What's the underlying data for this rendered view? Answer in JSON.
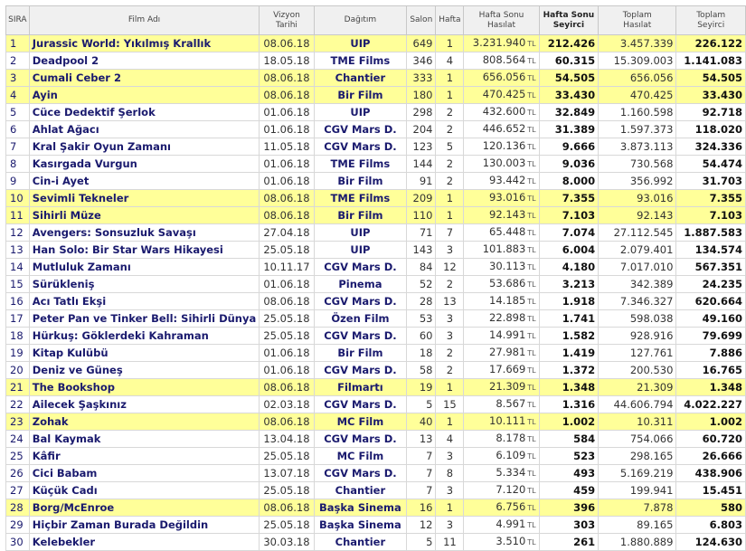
{
  "headers": {
    "rank": "SIRA",
    "title": "Film Adı",
    "release_1": "Vizyon",
    "release_2": "Tarihi",
    "distributor": "Dağıtım",
    "screens": "Salon",
    "week": "Hafta",
    "weekend_gross_1": "Hafta Sonu",
    "weekend_gross_2": "Hasılat",
    "weekend_adm_1": "Hafta Sonu",
    "weekend_adm_2": "Seyirci",
    "total_gross_1": "Toplam",
    "total_gross_2": "Hasılat",
    "total_adm_1": "Toplam",
    "total_adm_2": "Seyirci",
    "currency": "TL"
  },
  "rows": [
    {
      "rank": "1",
      "title": "Jurassic World: Yıkılmış Krallık",
      "date": "08.06.18",
      "dist": "UIP",
      "screens": "649",
      "week": "1",
      "wgross": "3.231.940",
      "wadm": "212.426",
      "tgross": "3.457.339",
      "tadm": "226.122",
      "hl": true
    },
    {
      "rank": "2",
      "title": "Deadpool 2",
      "date": "18.05.18",
      "dist": "TME Films",
      "screens": "346",
      "week": "4",
      "wgross": "808.564",
      "wadm": "60.315",
      "tgross": "15.309.003",
      "tadm": "1.141.083",
      "hl": false
    },
    {
      "rank": "3",
      "title": "Cumali Ceber 2",
      "date": "08.06.18",
      "dist": "Chantier",
      "screens": "333",
      "week": "1",
      "wgross": "656.056",
      "wadm": "54.505",
      "tgross": "656.056",
      "tadm": "54.505",
      "hl": true
    },
    {
      "rank": "4",
      "title": "Ayin",
      "date": "08.06.18",
      "dist": "Bir Film",
      "screens": "180",
      "week": "1",
      "wgross": "470.425",
      "wadm": "33.430",
      "tgross": "470.425",
      "tadm": "33.430",
      "hl": true
    },
    {
      "rank": "5",
      "title": "Cüce Dedektif Şerlok",
      "date": "01.06.18",
      "dist": "UIP",
      "screens": "298",
      "week": "2",
      "wgross": "432.600",
      "wadm": "32.849",
      "tgross": "1.160.598",
      "tadm": "92.718",
      "hl": false
    },
    {
      "rank": "6",
      "title": "Ahlat Ağacı",
      "date": "01.06.18",
      "dist": "CGV Mars D.",
      "screens": "204",
      "week": "2",
      "wgross": "446.652",
      "wadm": "31.389",
      "tgross": "1.597.373",
      "tadm": "118.020",
      "hl": false
    },
    {
      "rank": "7",
      "title": "Kral Şakir Oyun Zamanı",
      "date": "11.05.18",
      "dist": "CGV Mars D.",
      "screens": "123",
      "week": "5",
      "wgross": "120.136",
      "wadm": "9.666",
      "tgross": "3.873.113",
      "tadm": "324.336",
      "hl": false
    },
    {
      "rank": "8",
      "title": "Kasırgada Vurgun",
      "date": "01.06.18",
      "dist": "TME Films",
      "screens": "144",
      "week": "2",
      "wgross": "130.003",
      "wadm": "9.036",
      "tgross": "730.568",
      "tadm": "54.474",
      "hl": false
    },
    {
      "rank": "9",
      "title": "Cin-i Ayet",
      "date": "01.06.18",
      "dist": "Bir Film",
      "screens": "91",
      "week": "2",
      "wgross": "93.442",
      "wadm": "8.000",
      "tgross": "356.992",
      "tadm": "31.703",
      "hl": false
    },
    {
      "rank": "10",
      "title": "Sevimli Tekneler",
      "date": "08.06.18",
      "dist": "TME Films",
      "screens": "209",
      "week": "1",
      "wgross": "93.016",
      "wadm": "7.355",
      "tgross": "93.016",
      "tadm": "7.355",
      "hl": true
    },
    {
      "rank": "11",
      "title": "Sihirli Müze",
      "date": "08.06.18",
      "dist": "Bir Film",
      "screens": "110",
      "week": "1",
      "wgross": "92.143",
      "wadm": "7.103",
      "tgross": "92.143",
      "tadm": "7.103",
      "hl": true
    },
    {
      "rank": "12",
      "title": "Avengers: Sonsuzluk Savaşı",
      "date": "27.04.18",
      "dist": "UIP",
      "screens": "71",
      "week": "7",
      "wgross": "65.448",
      "wadm": "7.074",
      "tgross": "27.112.545",
      "tadm": "1.887.583",
      "hl": false
    },
    {
      "rank": "13",
      "title": "Han Solo: Bir Star Wars Hikayesi",
      "date": "25.05.18",
      "dist": "UIP",
      "screens": "143",
      "week": "3",
      "wgross": "101.883",
      "wadm": "6.004",
      "tgross": "2.079.401",
      "tadm": "134.574",
      "hl": false
    },
    {
      "rank": "14",
      "title": "Mutluluk Zamanı",
      "date": "10.11.17",
      "dist": "CGV Mars D.",
      "screens": "84",
      "week": "12",
      "wgross": "30.113",
      "wadm": "4.180",
      "tgross": "7.017.010",
      "tadm": "567.351",
      "hl": false
    },
    {
      "rank": "15",
      "title": "Sürükleniş",
      "date": "01.06.18",
      "dist": "Pinema",
      "screens": "52",
      "week": "2",
      "wgross": "53.686",
      "wadm": "3.213",
      "tgross": "342.389",
      "tadm": "24.235",
      "hl": false
    },
    {
      "rank": "16",
      "title": "Acı Tatlı Ekşi",
      "date": "08.06.18",
      "dist": "CGV Mars D.",
      "screens": "28",
      "week": "13",
      "wgross": "14.185",
      "wadm": "1.918",
      "tgross": "7.346.327",
      "tadm": "620.664",
      "hl": false
    },
    {
      "rank": "17",
      "title": "Peter Pan ve Tinker Bell: Sihirli Dünya",
      "date": "25.05.18",
      "dist": "Özen Film",
      "screens": "53",
      "week": "3",
      "wgross": "22.898",
      "wadm": "1.741",
      "tgross": "598.038",
      "tadm": "49.160",
      "hl": false
    },
    {
      "rank": "18",
      "title": "Hürkuş: Göklerdeki Kahraman",
      "date": "25.05.18",
      "dist": "CGV Mars D.",
      "screens": "60",
      "week": "3",
      "wgross": "14.991",
      "wadm": "1.582",
      "tgross": "928.916",
      "tadm": "79.699",
      "hl": false
    },
    {
      "rank": "19",
      "title": "Kitap Kulübü",
      "date": "01.06.18",
      "dist": "Bir Film",
      "screens": "18",
      "week": "2",
      "wgross": "27.981",
      "wadm": "1.419",
      "tgross": "127.761",
      "tadm": "7.886",
      "hl": false
    },
    {
      "rank": "20",
      "title": "Deniz ve Güneş",
      "date": "01.06.18",
      "dist": "CGV Mars D.",
      "screens": "58",
      "week": "2",
      "wgross": "17.669",
      "wadm": "1.372",
      "tgross": "200.530",
      "tadm": "16.765",
      "hl": false
    },
    {
      "rank": "21",
      "title": "The Bookshop",
      "date": "08.06.18",
      "dist": "Filmartı",
      "screens": "19",
      "week": "1",
      "wgross": "21.309",
      "wadm": "1.348",
      "tgross": "21.309",
      "tadm": "1.348",
      "hl": true
    },
    {
      "rank": "22",
      "title": "Ailecek Şaşkınız",
      "date": "02.03.18",
      "dist": "CGV Mars D.",
      "screens": "5",
      "week": "15",
      "wgross": "8.567",
      "wadm": "1.316",
      "tgross": "44.606.794",
      "tadm": "4.022.227",
      "hl": false
    },
    {
      "rank": "23",
      "title": "Zohak",
      "date": "08.06.18",
      "dist": "MC Film",
      "screens": "40",
      "week": "1",
      "wgross": "10.111",
      "wadm": "1.002",
      "tgross": "10.311",
      "tadm": "1.002",
      "hl": true
    },
    {
      "rank": "24",
      "title": "Bal Kaymak",
      "date": "13.04.18",
      "dist": "CGV Mars D.",
      "screens": "13",
      "week": "4",
      "wgross": "8.178",
      "wadm": "584",
      "tgross": "754.066",
      "tadm": "60.720",
      "hl": false
    },
    {
      "rank": "25",
      "title": "Kâfir",
      "date": "25.05.18",
      "dist": "MC Film",
      "screens": "7",
      "week": "3",
      "wgross": "6.109",
      "wadm": "523",
      "tgross": "298.165",
      "tadm": "26.666",
      "hl": false
    },
    {
      "rank": "26",
      "title": "Cici Babam",
      "date": "13.07.18",
      "dist": "CGV Mars D.",
      "screens": "7",
      "week": "8",
      "wgross": "5.334",
      "wadm": "493",
      "tgross": "5.169.219",
      "tadm": "438.906",
      "hl": false
    },
    {
      "rank": "27",
      "title": "Küçük Cadı",
      "date": "25.05.18",
      "dist": "Chantier",
      "screens": "7",
      "week": "3",
      "wgross": "7.120",
      "wadm": "459",
      "tgross": "199.941",
      "tadm": "15.451",
      "hl": false
    },
    {
      "rank": "28",
      "title": "Borg/McEnroe",
      "date": "08.06.18",
      "dist": "Başka Sinema",
      "screens": "16",
      "week": "1",
      "wgross": "6.756",
      "wadm": "396",
      "tgross": "7.878",
      "tadm": "580",
      "hl": true
    },
    {
      "rank": "29",
      "title": "Hiçbir Zaman Burada Değildin",
      "date": "25.05.18",
      "dist": "Başka Sinema",
      "screens": "12",
      "week": "3",
      "wgross": "4.991",
      "wadm": "303",
      "tgross": "89.165",
      "tadm": "6.803",
      "hl": false
    },
    {
      "rank": "30",
      "title": "Kelebekler",
      "date": "30.03.18",
      "dist": "Chantier",
      "screens": "5",
      "week": "11",
      "wgross": "3.510",
      "wadm": "261",
      "tgross": "1.880.889",
      "tadm": "124.630",
      "hl": false
    }
  ]
}
